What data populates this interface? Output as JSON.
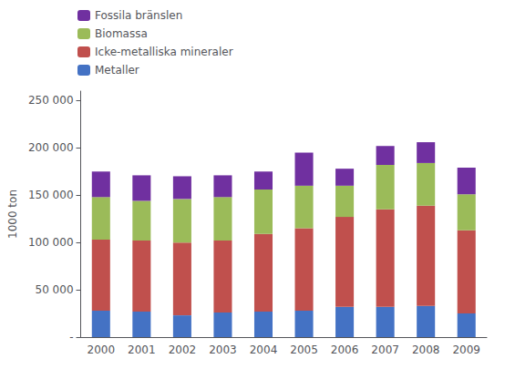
{
  "chart_data": {
    "type": "bar",
    "stacked": true,
    "categories": [
      "2000",
      "2001",
      "2002",
      "2003",
      "2004",
      "2005",
      "2006",
      "2007",
      "2008",
      "2009"
    ],
    "series": [
      {
        "name": "Metaller",
        "color": "#4472C4",
        "values": [
          28000,
          27000,
          23000,
          26000,
          27000,
          28000,
          32000,
          32000,
          33000,
          25000
        ]
      },
      {
        "name": "Icke-metalliska mineraler",
        "color": "#C0504D",
        "values": [
          75000,
          75000,
          77000,
          76000,
          82000,
          87000,
          95000,
          103000,
          106000,
          88000
        ]
      },
      {
        "name": "Biomassa",
        "color": "#9BBB59",
        "values": [
          45000,
          42000,
          46000,
          46000,
          47000,
          45000,
          33000,
          47000,
          45000,
          38000
        ]
      },
      {
        "name": "Fossila bränslen",
        "color": "#7030A0",
        "values": [
          27000,
          27000,
          24000,
          23000,
          19000,
          35000,
          18000,
          20000,
          22000,
          28000
        ]
      }
    ],
    "ylabel": "1000 ton",
    "ylim": [
      0,
      260000
    ],
    "yticks": [
      {
        "value": 0,
        "label": "-"
      },
      {
        "value": 50000,
        "label": "50 000"
      },
      {
        "value": 100000,
        "label": "100 000"
      },
      {
        "value": 150000,
        "label": "150 000"
      },
      {
        "value": 200000,
        "label": "200 000"
      },
      {
        "value": 250000,
        "label": "250 000"
      }
    ],
    "grid": false,
    "legend": "upper left"
  }
}
